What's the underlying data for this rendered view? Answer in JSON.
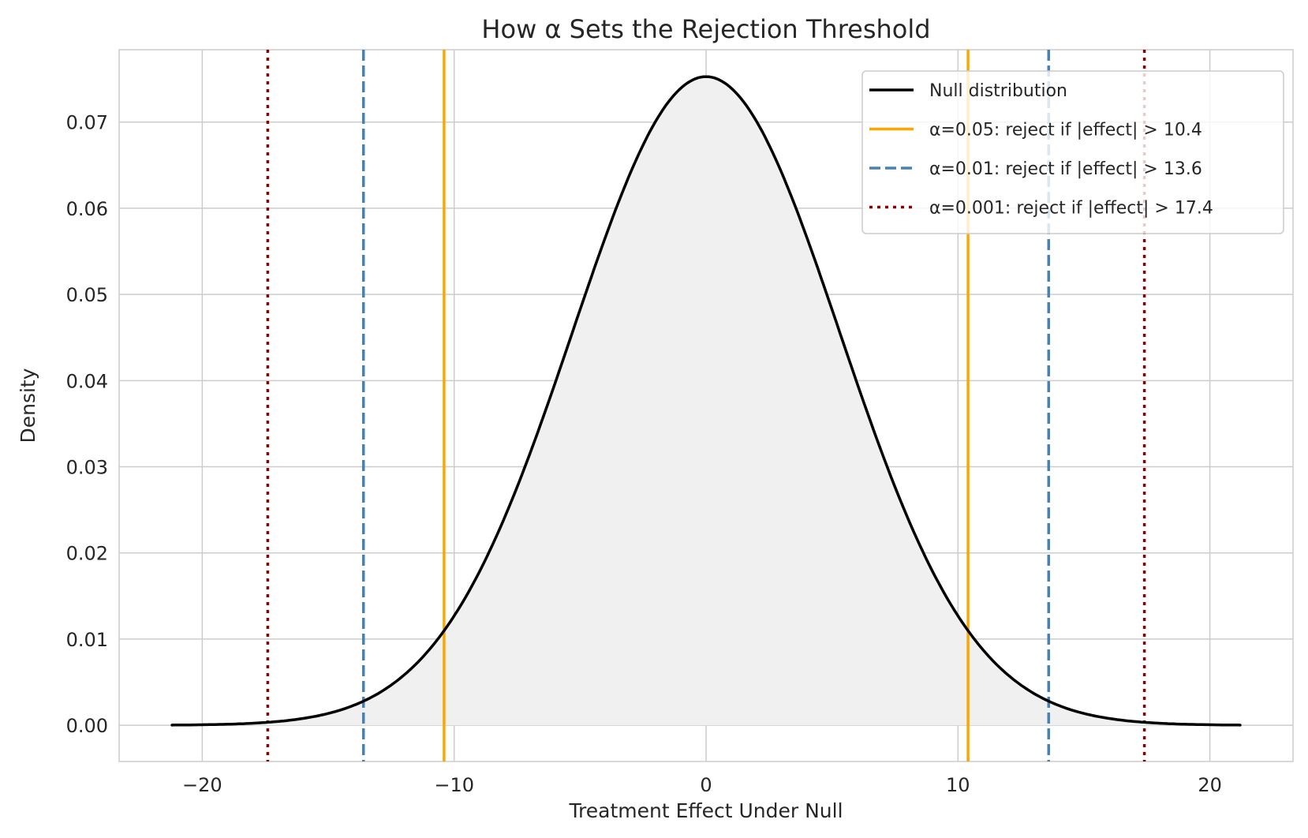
{
  "chart_data": {
    "type": "line",
    "title": "How α Sets the Rejection Threshold",
    "xlabel": "Treatment Effect Under Null",
    "ylabel": "Density",
    "xlim": [
      -23.3,
      23.3
    ],
    "ylim": [
      -0.0042,
      0.0784
    ],
    "xticks": [
      -20,
      -10,
      0,
      10,
      20
    ],
    "xtick_labels": [
      "−20",
      "−10",
      "0",
      "10",
      "20"
    ],
    "yticks": [
      0,
      0.01,
      0.02,
      0.03,
      0.04,
      0.05,
      0.06,
      0.07
    ],
    "ytick_labels": [
      "0.00",
      "0.01",
      "0.02",
      "0.03",
      "0.04",
      "0.05",
      "0.06",
      "0.07"
    ],
    "grid": true,
    "null_distribution": {
      "mean": 0,
      "sd": 5.3,
      "x_range": [
        -21.2,
        21.2
      ],
      "color": "#000000",
      "fill": "#f0f0f0"
    },
    "thresholds": [
      {
        "alpha": 0.05,
        "value": 10.4,
        "color": "#FFA500",
        "style": "solid"
      },
      {
        "alpha": 0.01,
        "value": 13.6,
        "color": "#4682B4",
        "style": "dashed"
      },
      {
        "alpha": 0.001,
        "value": 17.4,
        "color": "#8B0000",
        "style": "dotted"
      }
    ],
    "legend": {
      "placement": "top-right",
      "entries": [
        "Null distribution",
        "α=0.05: reject if |effect| > 10.4",
        "α=0.01: reject if |effect| > 13.6",
        "α=0.001: reject if |effect| > 17.4"
      ]
    }
  }
}
